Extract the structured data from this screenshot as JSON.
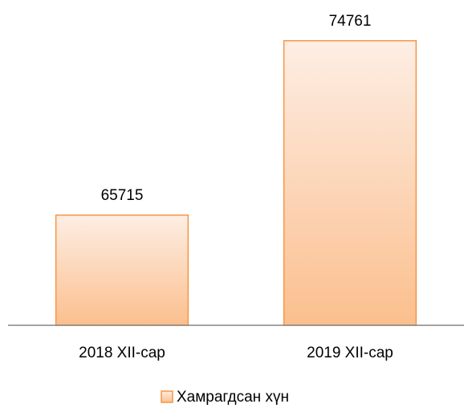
{
  "chart_data": {
    "type": "bar",
    "categories": [
      "2018 XII-сар",
      "2019 XII-сар"
    ],
    "series": [
      {
        "name": "Хамрагдсан хүн",
        "color": "#f79646",
        "values": [
          65715,
          74761
        ]
      }
    ],
    "ylim": [
      60000,
      76000
    ],
    "legend": "bottom"
  }
}
